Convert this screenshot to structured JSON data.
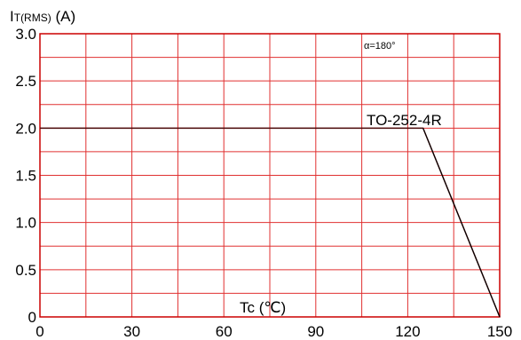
{
  "chart_data": {
    "type": "line",
    "ylabel_main": "I",
    "ylabel_sub": "T(RMS)",
    "ylabel_unit": " (A)",
    "xlabel": "Tc (℃)",
    "annotation": "α=180°",
    "xlim": [
      0,
      150
    ],
    "ylim": [
      0,
      3.0
    ],
    "x_ticks": [
      "0",
      "30",
      "60",
      "90",
      "120",
      "150"
    ],
    "y_ticks": [
      "0",
      "0.5",
      "1.0",
      "1.5",
      "2.0",
      "2.5",
      "3.0"
    ],
    "grid": true,
    "series": [
      {
        "name": "TO-252-4R",
        "x": [
          0,
          125,
          150
        ],
        "y": [
          2.0,
          2.0,
          0
        ]
      }
    ],
    "colors": {
      "frame": "#cc0000",
      "grid": "#e03030",
      "series": "#4a0a0a",
      "leader": "#000000"
    }
  }
}
